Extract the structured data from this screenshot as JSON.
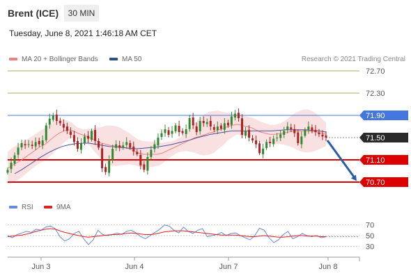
{
  "header": {
    "instrument": "Brent (ICE)",
    "timeframe": "30 MIN"
  },
  "timestamp": "Tuesday, June 8, 2021 1:46:18 AM CET",
  "credit": "Research © 2021 Trading Central",
  "legend": {
    "ma20_bb": "MA 20 + Bollinger Bands",
    "ma50": "MA 50",
    "rsi": "RSI",
    "ma9": "9MA"
  },
  "colors": {
    "bollinger_fill": "#f8d7d7",
    "ma20": "#f08080",
    "ma50": "#4a4ea0",
    "up_candle": "#2f8a2f",
    "down_candle": "#b02020",
    "resistance_line": "#4477dd",
    "support_line": "#dd0000",
    "target_line": "#99bb55",
    "arrow": "#2b5ca8",
    "rsi_line": "#6688dd",
    "rsi_ma": "#dd2222"
  },
  "chart_data": [
    {
      "type": "candlestick",
      "title": "Brent (ICE) 30 MIN",
      "x_labels": [
        "Jun 3",
        "Jun 4",
        "Jun 7",
        "Jun 8"
      ],
      "ylim": [
        70.6,
        72.85
      ],
      "price_levels": [
        {
          "value": 72.7,
          "label": "72.70",
          "kind": "target"
        },
        {
          "value": 72.3,
          "label": "72.30",
          "kind": "target"
        },
        {
          "value": 71.9,
          "label": "71.90",
          "kind": "resistance"
        },
        {
          "value": 71.5,
          "label": "71.50",
          "kind": "last"
        },
        {
          "value": 71.1,
          "label": "71.10",
          "kind": "support"
        },
        {
          "value": 70.7,
          "label": "70.70",
          "kind": "support"
        }
      ],
      "close": [
        70.92,
        71.05,
        71.18,
        71.32,
        71.4,
        71.36,
        71.38,
        71.35,
        71.42,
        71.38,
        71.45,
        71.72,
        71.84,
        71.9,
        71.8,
        71.76,
        71.68,
        71.62,
        71.55,
        71.42,
        71.3,
        71.4,
        71.52,
        71.48,
        71.62,
        71.44,
        71.32,
        70.95,
        70.88,
        71.1,
        71.3,
        71.38,
        71.32,
        71.36,
        71.42,
        71.32,
        71.25,
        71.2,
        71.0,
        70.92,
        71.15,
        71.28,
        71.38,
        71.5,
        71.58,
        71.65,
        71.55,
        71.62,
        71.72,
        71.6,
        71.58,
        71.65,
        71.85,
        71.72,
        71.6,
        71.8,
        71.76,
        71.78,
        71.7,
        71.64,
        71.7,
        71.66,
        71.76,
        71.72,
        71.88,
        71.93,
        71.85,
        71.55,
        71.62,
        71.5,
        71.45,
        71.38,
        71.22,
        71.3,
        71.42,
        71.4,
        71.48,
        71.5,
        71.56,
        71.62,
        71.7,
        71.65,
        71.58,
        71.4,
        71.52,
        71.64,
        71.7,
        71.62,
        71.6,
        71.56,
        71.52,
        71.5
      ],
      "ma20": [
        70.95,
        71.0,
        71.05,
        71.1,
        71.16,
        71.22,
        71.28,
        71.34,
        71.38,
        71.45,
        71.52,
        71.58,
        71.62,
        71.64,
        71.62,
        71.58,
        71.55,
        71.52,
        71.48,
        71.44,
        71.4,
        71.38,
        71.36,
        71.35,
        71.34,
        71.32,
        71.3,
        71.26,
        71.22,
        71.2,
        71.2,
        71.2,
        71.2,
        71.22,
        71.26,
        71.3,
        71.34,
        71.38,
        71.42,
        71.46,
        71.5,
        71.52,
        71.55,
        71.58,
        71.6,
        71.64,
        71.66,
        71.7,
        71.72,
        71.74,
        71.72,
        71.7,
        71.68,
        71.64,
        71.6,
        71.58,
        71.56,
        71.56,
        71.57,
        71.58,
        71.6,
        71.62,
        71.62,
        71.62,
        71.62,
        71.61,
        71.6,
        71.58,
        71.56
      ],
      "ma50": [
        70.85,
        70.92,
        71.0,
        71.08,
        71.16,
        71.23,
        71.29,
        71.34,
        71.37,
        71.39,
        71.4,
        71.4,
        71.38,
        71.36,
        71.34,
        71.33,
        71.32,
        71.31,
        71.3,
        71.31,
        71.32,
        71.33,
        71.35,
        71.37,
        71.4,
        71.43,
        71.46,
        71.5,
        71.53,
        71.56,
        71.58,
        71.6,
        71.62,
        71.62,
        71.62,
        71.62,
        71.62,
        71.62,
        71.62,
        71.63,
        71.64,
        71.64,
        71.64,
        71.64,
        71.63,
        71.62,
        71.6
      ]
    },
    {
      "type": "line",
      "title": "RSI",
      "series": [
        {
          "name": "RSI",
          "values": [
            50,
            46,
            52,
            55,
            58,
            56,
            62,
            60,
            66,
            68,
            63,
            48,
            40,
            44,
            54,
            58,
            44,
            33,
            42,
            60,
            52,
            50,
            52,
            55,
            52,
            58,
            60,
            55,
            48,
            44,
            50,
            56,
            62,
            70,
            68,
            60,
            55,
            66,
            58,
            54,
            60,
            63,
            48,
            50,
            52,
            56,
            50,
            54,
            55,
            50,
            46,
            42,
            50,
            64,
            60,
            46,
            37,
            42,
            52,
            58,
            44,
            48,
            54,
            50,
            48,
            50,
            46,
            48
          ]
        },
        {
          "name": "9MA",
          "values": [
            48,
            49,
            50,
            51,
            53,
            55,
            58,
            60,
            62,
            63,
            62,
            59,
            56,
            54,
            52,
            50,
            48,
            47,
            48,
            49,
            50,
            51,
            52,
            52,
            53,
            54,
            55,
            54,
            53,
            52,
            52,
            53,
            55,
            57,
            58,
            59,
            59,
            59,
            58,
            57,
            56,
            55,
            54,
            53,
            52,
            51,
            51,
            51,
            51,
            50,
            49,
            48,
            48,
            49,
            50,
            49,
            48,
            47,
            47,
            48,
            49,
            50,
            50,
            49,
            49,
            49,
            48,
            48
          ]
        }
      ],
      "levels": [
        70,
        50,
        30
      ],
      "ylim": [
        20,
        80
      ]
    }
  ]
}
